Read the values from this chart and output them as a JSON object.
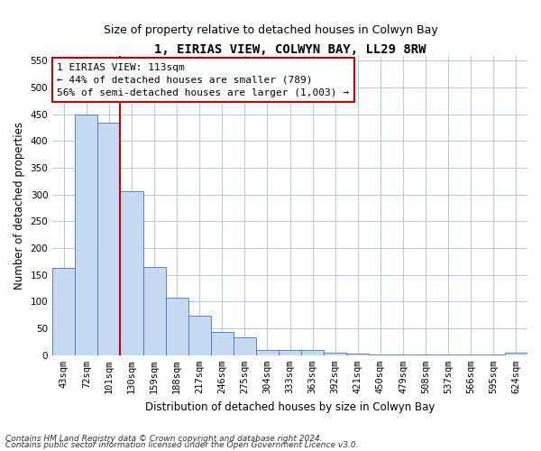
{
  "title": "1, EIRIAS VIEW, COLWYN BAY, LL29 8RW",
  "subtitle": "Size of property relative to detached houses in Colwyn Bay",
  "xlabel": "Distribution of detached houses by size in Colwyn Bay",
  "ylabel": "Number of detached properties",
  "categories": [
    "43sqm",
    "72sqm",
    "101sqm",
    "130sqm",
    "159sqm",
    "188sqm",
    "217sqm",
    "246sqm",
    "275sqm",
    "304sqm",
    "333sqm",
    "363sqm",
    "392sqm",
    "421sqm",
    "450sqm",
    "479sqm",
    "508sqm",
    "537sqm",
    "566sqm",
    "595sqm",
    "624sqm"
  ],
  "values": [
    163,
    450,
    435,
    307,
    165,
    107,
    73,
    44,
    33,
    10,
    10,
    9,
    5,
    3,
    2,
    2,
    1,
    1,
    1,
    1,
    4
  ],
  "bar_color": "#c5d9f0",
  "bar_edge_color": "#4472c4",
  "vline_index": 2,
  "annotation_line1": "1 EIRIAS VIEW: 113sqm",
  "annotation_line2": "← 44% of detached houses are smaller (789)",
  "annotation_line3": "56% of semi-detached houses are larger (1,003) →",
  "annotation_box_color": "#ffffff",
  "annotation_border_color": "#cc0000",
  "vline_color": "#cc0000",
  "ylim": [
    0,
    560
  ],
  "yticks": [
    0,
    50,
    100,
    150,
    200,
    250,
    300,
    350,
    400,
    450,
    500,
    550
  ],
  "footer_line1": "Contains HM Land Registry data © Crown copyright and database right 2024.",
  "footer_line2": "Contains public sector information licensed under the Open Government Licence v3.0.",
  "bg_color": "#ffffff",
  "grid_color": "#b8c8dc",
  "title_fontsize": 10,
  "subtitle_fontsize": 9,
  "axis_label_fontsize": 8.5,
  "tick_fontsize": 7.5,
  "annotation_fontsize": 8,
  "footer_fontsize": 6.5
}
